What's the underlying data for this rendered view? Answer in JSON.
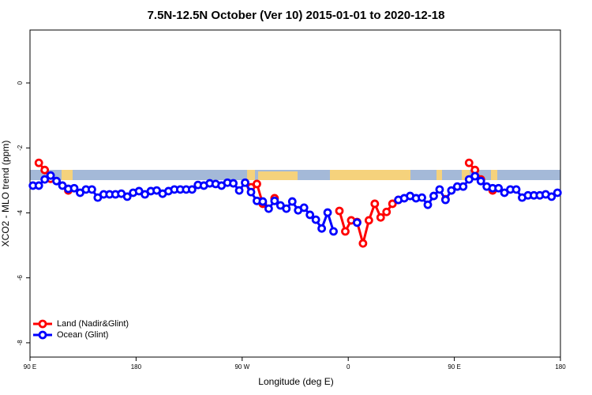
{
  "chart_data": {
    "type": "line",
    "title": "7.5N-12.5N October (Ver 10)   2015-01-01 to 2020-12-18",
    "x_label": "Longitude (deg E)",
    "y_label": "XCO2 - MLO trend (ppm)",
    "xlim": [
      90,
      540
    ],
    "xticks": [
      {
        "value": 90,
        "label": "90 E"
      },
      180,
      {
        "value": 270,
        "label": "90 W"
      },
      {
        "value": 360,
        "label": "0"
      },
      {
        "value": 450,
        "label": "90 E"
      },
      {
        "value": 540,
        "label": "180"
      }
    ],
    "ylim": [
      -8.44,
      1.63
    ],
    "yticks": [
      0,
      -2,
      -4,
      -6,
      -8
    ],
    "legend": "bottom-left",
    "x": [
      92.5,
      97.5,
      102.5,
      107.5,
      112.5,
      117.5,
      122.5,
      127.5,
      132.5,
      137.5,
      142.5,
      147.5,
      152.5,
      157.5,
      162.5,
      167.5,
      172.5,
      177.5,
      182.5,
      187.5,
      192.5,
      197.5,
      202.5,
      207.5,
      212.5,
      217.5,
      222.5,
      227.5,
      232.5,
      237.5,
      242.5,
      247.5,
      252.5,
      257.5,
      262.5,
      267.5,
      272.5,
      277.5,
      282.5,
      287.5,
      292.5,
      297.5,
      302.5,
      307.5,
      312.5,
      317.5,
      322.5,
      327.5,
      332.5,
      337.5,
      342.5,
      347.5,
      352.5,
      357.5,
      362.5,
      367.5,
      372.5,
      377.5,
      382.5,
      387.5,
      392.5,
      397.5,
      402.5,
      407.5,
      412.5,
      417.5,
      422.5,
      427.5,
      432.5,
      437.5,
      442.5,
      447.5,
      452.5,
      457.5,
      462.5,
      467.5,
      472.5,
      477.5,
      482.5,
      487.5,
      492.5,
      497.5,
      502.5,
      507.5,
      512.5,
      517.5,
      522.5,
      527.5,
      532.5,
      537.5
    ],
    "series": [
      {
        "name": "Land (Nadir&Glint)",
        "color": "#ff0000",
        "values": [
          null,
          -2.46,
          -2.68,
          -2.95,
          null,
          null,
          -3.31,
          null,
          null,
          null,
          null,
          null,
          null,
          null,
          null,
          null,
          null,
          null,
          null,
          null,
          null,
          null,
          null,
          null,
          null,
          null,
          null,
          null,
          null,
          null,
          null,
          null,
          null,
          null,
          null,
          null,
          null,
          -3.21,
          -3.11,
          -3.72,
          null,
          -3.55,
          null,
          null,
          null,
          null,
          null,
          null,
          null,
          null,
          null,
          null,
          -3.94,
          -4.57,
          -4.23,
          -4.28,
          -4.94,
          -4.23,
          -3.72,
          -4.14,
          -3.97,
          -3.72,
          -3.6,
          null,
          null,
          null,
          null,
          null,
          null,
          null,
          -3.58,
          null,
          null,
          null,
          -2.46,
          -2.68,
          -2.97,
          null,
          -3.31,
          null,
          null,
          null,
          null,
          null,
          null,
          null,
          null,
          null,
          null,
          null
        ]
      },
      {
        "name": "Ocean (Glint)",
        "color": "#0000ff",
        "values": [
          -3.16,
          -3.16,
          -2.97,
          -2.85,
          -3.02,
          -3.16,
          -3.26,
          -3.24,
          -3.38,
          -3.28,
          -3.28,
          -3.53,
          -3.43,
          -3.43,
          -3.43,
          -3.41,
          -3.5,
          -3.38,
          -3.33,
          -3.43,
          -3.33,
          -3.31,
          -3.41,
          -3.33,
          -3.28,
          -3.28,
          -3.28,
          -3.28,
          -3.14,
          -3.16,
          -3.09,
          -3.11,
          -3.16,
          -3.07,
          -3.09,
          -3.31,
          -3.07,
          -3.36,
          -3.63,
          -3.65,
          -3.87,
          -3.63,
          -3.77,
          -3.87,
          -3.65,
          -3.92,
          -3.84,
          -4.06,
          -4.21,
          -4.48,
          -3.99,
          -4.57,
          null,
          null,
          null,
          -4.3,
          null,
          null,
          null,
          null,
          null,
          null,
          -3.6,
          -3.55,
          -3.48,
          -3.55,
          -3.53,
          -3.75,
          -3.48,
          -3.28,
          -3.6,
          -3.31,
          -3.19,
          -3.19,
          -2.97,
          -2.87,
          -3.02,
          -3.19,
          -3.24,
          -3.24,
          -3.38,
          -3.28,
          -3.28,
          -3.53,
          -3.46,
          -3.46,
          -3.46,
          -3.43,
          -3.5,
          -3.38
        ]
      }
    ]
  }
}
